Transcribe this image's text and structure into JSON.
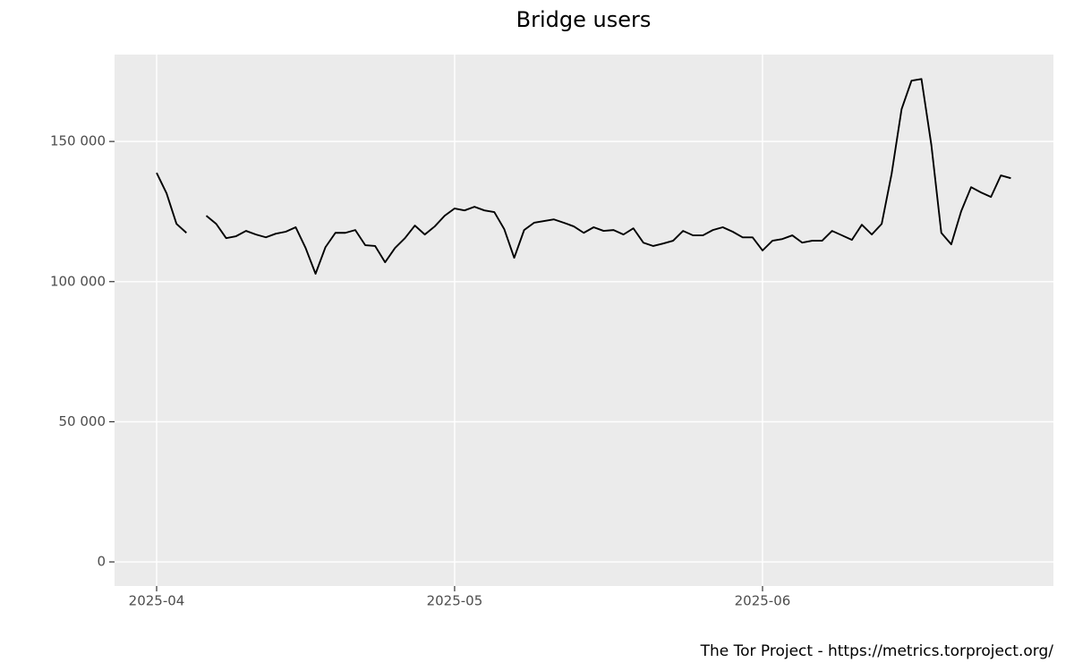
{
  "chart_data": {
    "type": "line",
    "title": "Bridge users",
    "caption": "The Tor Project - https://metrics.torproject.org/",
    "categories": [
      "2025-04",
      null,
      null,
      null,
      null,
      null,
      null,
      null,
      null,
      null,
      null,
      null,
      null,
      null,
      null,
      null,
      null,
      null,
      null,
      null,
      null,
      null,
      null,
      null,
      null,
      null,
      null,
      null,
      null,
      null,
      "2025-05",
      null,
      null,
      null,
      null,
      null,
      null,
      null,
      null,
      null,
      null,
      null,
      null,
      null,
      null,
      null,
      null,
      null,
      null,
      null,
      null,
      null,
      null,
      null,
      null,
      null,
      null,
      null,
      null,
      null,
      null,
      "2025-06",
      null,
      null,
      null,
      null,
      null,
      null,
      null,
      null,
      null,
      null,
      null,
      null,
      null,
      null,
      null,
      null,
      null,
      null,
      null,
      null,
      null,
      null,
      null,
      null,
      null
    ],
    "values": [
      138800,
      131500,
      120600,
      117400,
      null,
      123500,
      120600,
      115500,
      116200,
      118100,
      116800,
      115800,
      117100,
      117800,
      119400,
      112000,
      102800,
      112300,
      117400,
      117400,
      118400,
      113000,
      112700,
      106900,
      112000,
      115500,
      120000,
      116800,
      119700,
      123500,
      126100,
      125400,
      126700,
      125400,
      124800,
      118700,
      108500,
      118400,
      121000,
      121600,
      122200,
      121000,
      119700,
      117400,
      119400,
      118100,
      118400,
      116800,
      119000,
      113900,
      112700,
      113600,
      114600,
      118100,
      116500,
      116500,
      118400,
      119400,
      117800,
      115800,
      115800,
      111100,
      114600,
      115200,
      116500,
      113900,
      114600,
      114600,
      118100,
      116500,
      114900,
      120300,
      116800,
      120600,
      138500,
      161500,
      171700,
      172300,
      148700,
      117400,
      113300,
      125100,
      133700,
      131800,
      130200,
      137900,
      136900
    ],
    "color": "#000000",
    "ylim": [
      -8600,
      181000
    ],
    "yticks": [
      0,
      {
        "value": 50000,
        "label": "50 000"
      },
      {
        "value": 100000,
        "label": "100 000"
      },
      {
        "value": 150000,
        "label": "150 000"
      }
    ],
    "grid": true
  }
}
